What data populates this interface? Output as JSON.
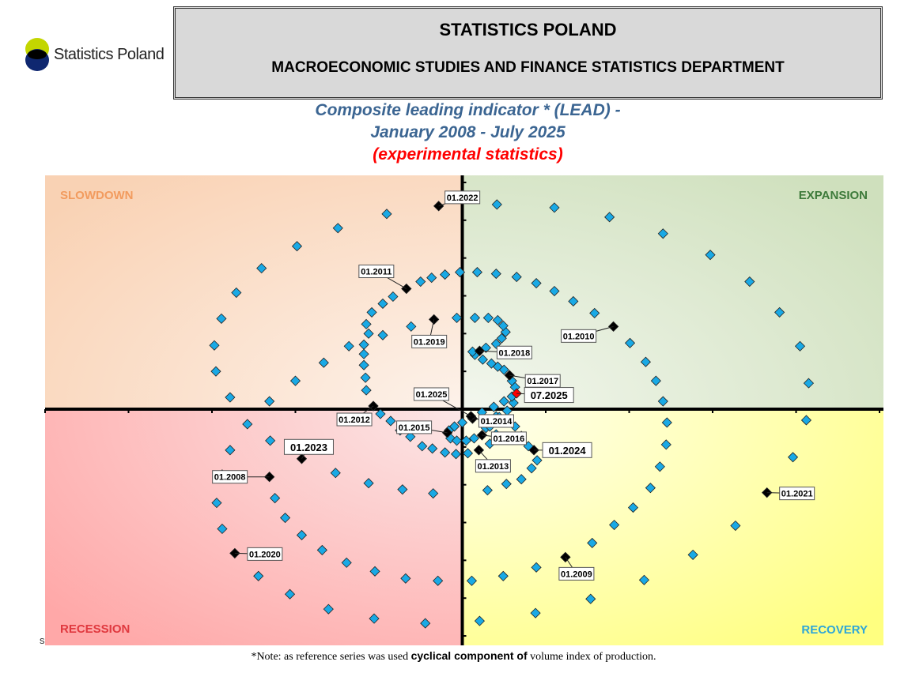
{
  "logo": {
    "text": "Statistics Poland"
  },
  "header": {
    "title": "STATISTICS POLAND",
    "department": "MACROECONOMIC STUDIES AND FINANCE STATISTICS DEPARTMENT"
  },
  "colors": {
    "point": "#19a9e5",
    "highlight": "#ff0000",
    "marker": "#000000",
    "title": "#3b6592"
  },
  "chart_data": {
    "type": "scatter",
    "title": "Composite leading indicator * (LEAD) -",
    "subtitle": "January 2008 - July 2025",
    "subtitle2": "(experimental statistics)",
    "xlabel": "",
    "ylabel": "",
    "xlim": [
      -5.3,
      5.35
    ],
    "ylim": [
      -3.0,
      2.97
    ],
    "grid": false,
    "quadrants": {
      "top_left": "SLOWDOWN",
      "top_right": "EXPANSION",
      "bottom_left": "RECESSION",
      "bottom_right": "RECOVERY"
    },
    "points": [
      [
        -0.3,
        2.58
      ],
      [
        0.44,
        2.6
      ],
      [
        1.17,
        2.56
      ],
      [
        1.87,
        2.44
      ],
      [
        2.55,
        2.23
      ],
      [
        3.15,
        1.96
      ],
      [
        3.65,
        1.62
      ],
      [
        4.03,
        1.23
      ],
      [
        4.29,
        0.8
      ],
      [
        4.4,
        0.33
      ],
      [
        4.37,
        -0.14
      ],
      [
        4.2,
        -0.61
      ],
      [
        3.87,
        -1.06
      ],
      [
        3.47,
        -1.48
      ],
      [
        2.93,
        -1.85
      ],
      [
        2.31,
        -2.17
      ],
      [
        1.63,
        -2.41
      ],
      [
        0.93,
        -2.59
      ],
      [
        0.22,
        -2.69
      ],
      [
        -0.47,
        -2.72
      ],
      [
        -1.12,
        -2.66
      ],
      [
        -1.7,
        -2.54
      ],
      [
        -2.19,
        -2.35
      ],
      [
        -2.59,
        -2.12
      ],
      [
        -2.89,
        -1.83
      ],
      [
        -3.05,
        -1.52
      ],
      [
        -3.12,
        -1.19
      ],
      [
        -3.05,
        -0.83
      ],
      [
        -2.95,
        -0.52
      ],
      [
        -2.73,
        -0.19
      ],
      [
        -2.95,
        0.15
      ],
      [
        -3.13,
        0.48
      ],
      [
        -3.15,
        0.81
      ],
      [
        -3.06,
        1.15
      ],
      [
        -2.87,
        1.48
      ],
      [
        -2.55,
        1.79
      ],
      [
        -2.1,
        2.07
      ],
      [
        -1.58,
        2.3
      ],
      [
        -0.96,
        2.48
      ],
      [
        -0.36,
        1.14
      ],
      [
        -0.65,
        1.05
      ],
      [
        -1.01,
        0.94
      ],
      [
        -1.44,
        0.8
      ],
      [
        -1.76,
        0.59
      ],
      [
        -2.12,
        0.36
      ],
      [
        -2.45,
        0.1
      ],
      [
        -2.44,
        -0.4
      ],
      [
        -2.04,
        -0.63
      ],
      [
        -1.61,
        -0.81
      ],
      [
        -1.19,
        -0.94
      ],
      [
        -0.76,
        -1.02
      ],
      [
        -0.37,
        -1.07
      ],
      [
        0.32,
        -1.03
      ],
      [
        0.56,
        -0.95
      ],
      [
        0.75,
        -0.89
      ],
      [
        0.88,
        -0.75
      ],
      [
        0.95,
        -0.65
      ],
      [
        0.91,
        -0.52
      ],
      [
        0.84,
        -0.47
      ],
      [
        0.75,
        -0.34
      ],
      [
        0.67,
        -0.22
      ],
      [
        0.57,
        -0.14
      ],
      [
        0.43,
        -0.09
      ],
      [
        -2.45,
        -0.86
      ],
      [
        -2.38,
        -1.13
      ],
      [
        -2.25,
        -1.38
      ],
      [
        -2.04,
        -1.6
      ],
      [
        -1.78,
        -1.79
      ],
      [
        -1.47,
        -1.95
      ],
      [
        -1.11,
        -2.06
      ],
      [
        -0.72,
        -2.15
      ],
      [
        -0.31,
        -2.18
      ],
      [
        0.12,
        -2.18
      ],
      [
        0.52,
        -2.12
      ],
      [
        0.94,
        -2.01
      ],
      [
        1.31,
        -1.88
      ],
      [
        1.65,
        -1.7
      ],
      [
        1.93,
        -1.47
      ],
      [
        2.17,
        -1.25
      ],
      [
        2.39,
        -1.0
      ],
      [
        2.51,
        -0.73
      ],
      [
        2.59,
        -0.45
      ],
      [
        2.6,
        -0.17
      ],
      [
        2.55,
        0.1
      ],
      [
        2.46,
        0.36
      ],
      [
        2.33,
        0.6
      ],
      [
        2.13,
        0.84
      ],
      [
        1.92,
        1.05
      ],
      [
        1.68,
        1.22
      ],
      [
        1.41,
        1.37
      ],
      [
        1.17,
        1.5
      ],
      [
        0.94,
        1.6
      ],
      [
        0.69,
        1.68
      ],
      [
        0.43,
        1.72
      ],
      [
        0.19,
        1.74
      ],
      [
        -0.03,
        1.74
      ],
      [
        -0.22,
        1.71
      ],
      [
        -0.39,
        1.67
      ],
      [
        -0.53,
        1.62
      ],
      [
        -0.71,
        1.53
      ],
      [
        -0.88,
        1.43
      ],
      [
        -1.01,
        1.34
      ],
      [
        -1.15,
        1.23
      ],
      [
        -1.22,
        1.08
      ],
      [
        -1.19,
        0.96
      ],
      [
        -1.25,
        0.82
      ],
      [
        -1.25,
        0.7
      ],
      [
        -1.25,
        0.56
      ],
      [
        -1.23,
        0.4
      ],
      [
        -1.22,
        0.24
      ],
      [
        -1.13,
        0.04
      ],
      [
        -1.04,
        -0.06
      ],
      [
        -0.91,
        -0.15
      ],
      [
        -0.79,
        -0.27
      ],
      [
        -0.66,
        -0.35
      ],
      [
        -0.51,
        -0.47
      ],
      [
        -0.38,
        -0.5
      ],
      [
        -0.22,
        -0.55
      ],
      [
        -0.08,
        -0.57
      ],
      [
        0.07,
        -0.56
      ],
      [
        0.21,
        -0.52
      ],
      [
        0.35,
        -0.44
      ],
      [
        0.43,
        -0.32
      ],
      [
        0.3,
        -0.24
      ],
      [
        0.13,
        -0.12
      ],
      [
        0.0,
        -0.17
      ],
      [
        -0.1,
        -0.22
      ],
      [
        -0.17,
        -0.27
      ],
      [
        -0.19,
        -0.3
      ],
      [
        -0.15,
        -0.37
      ],
      [
        -0.07,
        -0.4
      ],
      [
        0.05,
        -0.4
      ],
      [
        0.15,
        -0.37
      ],
      [
        0.25,
        -0.33
      ],
      [
        0.35,
        -0.22
      ],
      [
        0.47,
        -0.1
      ],
      [
        0.57,
        -0.02
      ],
      [
        0.65,
        0.08
      ],
      [
        0.63,
        0.16
      ],
      [
        0.67,
        0.28
      ],
      [
        0.63,
        0.36
      ],
      [
        0.6,
        0.43
      ],
      [
        0.53,
        0.5
      ],
      [
        0.45,
        0.54
      ],
      [
        0.37,
        0.58
      ],
      [
        0.26,
        0.63
      ],
      [
        0.16,
        0.69
      ],
      [
        0.13,
        0.73
      ],
      [
        0.22,
        0.74
      ],
      [
        0.3,
        0.78
      ],
      [
        0.43,
        0.83
      ],
      [
        0.5,
        0.9
      ],
      [
        0.55,
        0.98
      ],
      [
        0.52,
        1.06
      ],
      [
        0.45,
        1.13
      ],
      [
        0.33,
        1.16
      ],
      [
        0.16,
        1.16
      ],
      [
        -0.07,
        1.16
      ],
      [
        0.11,
        -0.09
      ],
      [
        0.25,
        -0.04
      ],
      [
        0.4,
        0.03
      ],
      [
        0.53,
        0.1
      ]
    ],
    "labeled_points": [
      {
        "label": "01.2008",
        "x": -2.45,
        "y": -0.86
      },
      {
        "label": "01.2009",
        "x": 1.31,
        "y": -1.88
      },
      {
        "label": "01.2010",
        "x": 1.92,
        "y": 1.05
      },
      {
        "label": "01.2011",
        "x": -0.71,
        "y": 1.53
      },
      {
        "label": "01.2012",
        "x": -1.13,
        "y": 0.04
      },
      {
        "label": "01.2013",
        "x": 0.21,
        "y": -0.52
      },
      {
        "label": "01.2014",
        "x": 0.13,
        "y": -0.12
      },
      {
        "label": "01.2015",
        "x": -0.19,
        "y": -0.3
      },
      {
        "label": "01.2016",
        "x": 0.25,
        "y": -0.33
      },
      {
        "label": "01.2017",
        "x": 0.6,
        "y": 0.43
      },
      {
        "label": "01.2018",
        "x": 0.22,
        "y": 0.74
      },
      {
        "label": "01.2019",
        "x": -0.36,
        "y": 1.14
      },
      {
        "label": "01.2020",
        "x": -2.89,
        "y": -1.83
      },
      {
        "label": "01.2021",
        "x": 3.87,
        "y": -1.06
      },
      {
        "label": "01.2022",
        "x": -0.3,
        "y": 2.58
      },
      {
        "label": "01.2023",
        "x": -2.04,
        "y": -0.63
      },
      {
        "label": "01.2024",
        "x": 0.91,
        "y": -0.52
      },
      {
        "label": "01.2025",
        "x": 0.11,
        "y": -0.09
      },
      {
        "label": "07.2025",
        "x": 0.69,
        "y": 0.2,
        "highlight": true
      }
    ]
  },
  "footnote": {
    "prefix": "*Note: as reference series was used ",
    "bold": "cyclical component of",
    "suffix": " volume index of production."
  },
  "stray_text": "s"
}
